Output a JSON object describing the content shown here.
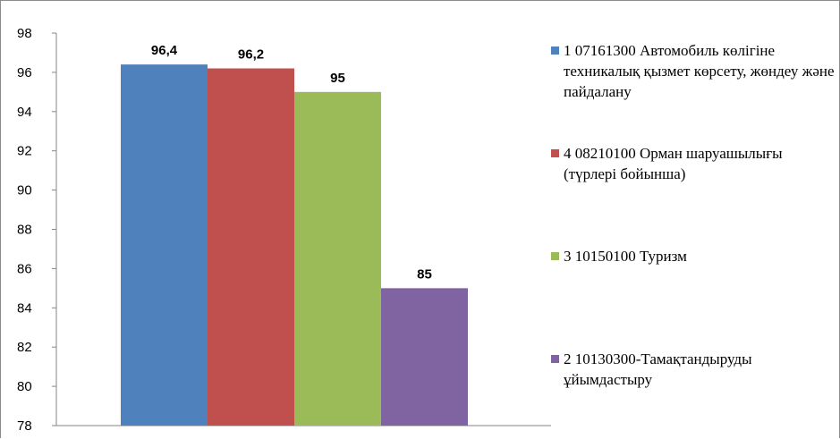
{
  "chart_data": {
    "type": "bar",
    "categories": [
      "1 07161300  Автомобиль көлігіне техникалық қызмет көрсету, жөндеу және пайдалану",
      "4 08210100  Орман шаруашылығы (түрлері бойынша)",
      "3 10150100  Туризм",
      "2 10130300-Тамақтандыруды ұйымдастыру"
    ],
    "values": [
      96.4,
      96.2,
      95,
      85
    ],
    "data_labels": [
      "96,4",
      "96,2",
      "95",
      "85"
    ],
    "colors": [
      "#4f81bd",
      "#c0504d",
      "#9bbb59",
      "#8064a2"
    ],
    "ylim": [
      78,
      98
    ],
    "y_ticks": [
      78,
      80,
      82,
      84,
      86,
      88,
      90,
      92,
      94,
      96,
      98
    ],
    "title": "",
    "xlabel": "",
    "ylabel": "",
    "grid": false,
    "legend_position": "right"
  },
  "legend": {
    "items": [
      {
        "label": "1 07161300  Автомобиль көлігіне техникалық қызмет көрсету, жөндеу және пайдалану",
        "color": "#4f81bd"
      },
      {
        "label": "4 08210100  Орман шаруашылығы (түрлері бойынша)",
        "color": "#c0504d"
      },
      {
        "label": "3 10150100  Туризм",
        "color": "#9bbb59"
      },
      {
        "label": "2 10130300-Тамақтандыруды ұйымдастыру",
        "color": "#8064a2"
      }
    ]
  }
}
